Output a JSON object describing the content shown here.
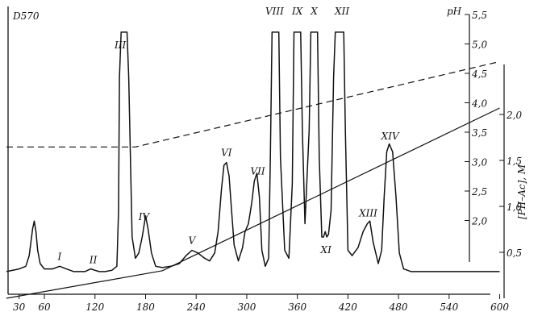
{
  "chart_data": {
    "type": "line",
    "title": "",
    "xlabel": "",
    "ylabel_left": "D570",
    "ylabel_right_ph": "pH",
    "ylabel_right_conc": "[PII–Ac], M",
    "xlim": [
      15,
      610
    ],
    "x_ticks": [
      "30",
      "60",
      "120",
      "180",
      "240",
      "300",
      "360",
      "420",
      "480",
      "540",
      "600"
    ],
    "ph_ticks": [
      "2,0",
      "2,5",
      "3,0",
      "3,5",
      "4,0",
      "4,5",
      "5,0",
      "5,5"
    ],
    "conc_ticks": [
      "0,5",
      "1,0",
      "1,5",
      "2,0"
    ],
    "ph_range": [
      1.5,
      5.5
    ],
    "conc_range": [
      0,
      2.5
    ],
    "peak_labels": [
      {
        "label": "I",
        "x": 78
      },
      {
        "label": "II",
        "x": 118
      },
      {
        "label": "III",
        "x": 150
      },
      {
        "label": "IV",
        "x": 178
      },
      {
        "label": "V",
        "x": 235
      },
      {
        "label": "VI",
        "x": 276
      },
      {
        "label": "VII",
        "x": 313
      },
      {
        "label": "VIII",
        "x": 333
      },
      {
        "label": "IX",
        "x": 360
      },
      {
        "label": "X",
        "x": 380
      },
      {
        "label": "XI",
        "x": 394
      },
      {
        "label": "XII",
        "x": 413
      },
      {
        "label": "XIII",
        "x": 444
      },
      {
        "label": "XIV",
        "x": 470
      }
    ],
    "series": [
      {
        "style": "solid",
        "x": [
          15,
          30,
          38,
          42,
          44,
          46,
          48,
          50,
          52,
          55,
          60,
          70,
          78,
          86,
          95,
          108,
          115,
          120,
          125,
          132,
          140,
          146,
          148,
          149,
          151,
          153,
          156,
          158,
          160,
          164,
          168,
          172,
          176,
          180,
          183,
          187,
          192,
          200,
          210,
          220,
          228,
          235,
          242,
          250,
          256,
          262,
          266,
          270,
          273,
          276,
          279,
          282,
          285,
          290,
          295,
          298,
          302,
          306,
          309,
          312,
          315,
          318,
          322,
          326,
          328,
          330,
          334,
          338,
          340,
          345,
          350,
          354,
          356,
          364,
          366,
          369,
          374,
          376,
          384,
          386,
          389,
          391,
          393,
          395,
          397,
          400,
          403,
          405,
          407,
          415,
          417,
          420,
          425,
          432,
          438,
          443,
          446,
          450,
          456,
          460,
          463,
          466,
          469,
          473,
          477,
          481,
          486,
          495,
          510,
          530,
          560,
          600
        ],
        "y": [
          0.07,
          0.08,
          0.09,
          0.13,
          0.18,
          0.23,
          0.26,
          0.22,
          0.15,
          0.1,
          0.08,
          0.08,
          0.09,
          0.08,
          0.07,
          0.07,
          0.08,
          0.075,
          0.07,
          0.07,
          0.075,
          0.09,
          0.3,
          0.8,
          0.97,
          0.97,
          0.97,
          0.97,
          0.8,
          0.2,
          0.12,
          0.14,
          0.2,
          0.28,
          0.23,
          0.14,
          0.09,
          0.085,
          0.09,
          0.1,
          0.13,
          0.15,
          0.14,
          0.12,
          0.11,
          0.14,
          0.22,
          0.38,
          0.47,
          0.48,
          0.43,
          0.3,
          0.17,
          0.11,
          0.16,
          0.22,
          0.25,
          0.33,
          0.41,
          0.44,
          0.35,
          0.15,
          0.09,
          0.12,
          0.5,
          0.97,
          0.97,
          0.97,
          0.5,
          0.15,
          0.12,
          0.4,
          0.97,
          0.97,
          0.6,
          0.25,
          0.6,
          0.97,
          0.97,
          0.5,
          0.2,
          0.2,
          0.22,
          0.2,
          0.21,
          0.3,
          0.8,
          0.97,
          0.97,
          0.97,
          0.6,
          0.15,
          0.13,
          0.16,
          0.22,
          0.25,
          0.26,
          0.18,
          0.1,
          0.15,
          0.35,
          0.52,
          0.55,
          0.52,
          0.35,
          0.14,
          0.08,
          0.07,
          0.07,
          0.07,
          0.07,
          0.07
        ]
      },
      {
        "style": "dashed",
        "unit": "pH",
        "x": [
          15,
          168,
          600
        ],
        "y": [
          3.25,
          3.25,
          4.7
        ]
      },
      {
        "style": "solid-straight",
        "unit": "M",
        "x": [
          15,
          200,
          600
        ],
        "y": [
          0,
          0.3,
          2.07
        ]
      }
    ]
  }
}
